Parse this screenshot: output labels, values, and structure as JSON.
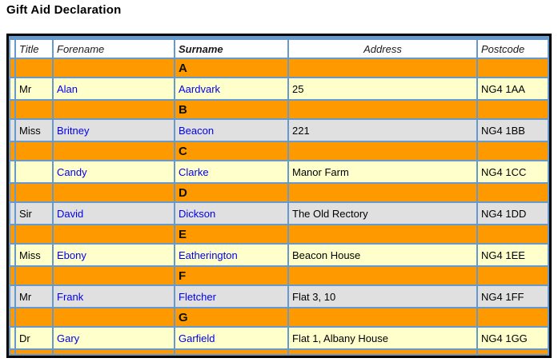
{
  "page_title": "Gift Aid Declaration",
  "table": {
    "columns": [
      {
        "key": "title",
        "label": "Title"
      },
      {
        "key": "forename",
        "label": "Forename"
      },
      {
        "key": "surname",
        "label": "Surname"
      },
      {
        "key": "address",
        "label": "Address"
      },
      {
        "key": "postcode",
        "label": "Postcode"
      }
    ],
    "rows": [
      {
        "type": "separator",
        "letter": "A"
      },
      {
        "type": "data",
        "shade": "yellow",
        "title": "Mr",
        "forename": "Alan",
        "surname": "Aardvark",
        "address": "25",
        "postcode": "NG4 1AA"
      },
      {
        "type": "separator",
        "letter": "B"
      },
      {
        "type": "data",
        "shade": "gray",
        "title": "Miss",
        "forename": "Britney",
        "surname": "Beacon",
        "address": "221",
        "postcode": "NG4 1BB"
      },
      {
        "type": "separator",
        "letter": "C"
      },
      {
        "type": "data",
        "shade": "yellow",
        "title": "",
        "forename": "Candy",
        "surname": "Clarke",
        "address": "Manor Farm",
        "postcode": "NG4 1CC"
      },
      {
        "type": "separator",
        "letter": "D"
      },
      {
        "type": "data",
        "shade": "gray",
        "title": "Sir",
        "forename": "David",
        "surname": "Dickson",
        "address": "The Old Rectory",
        "postcode": "NG4 1DD"
      },
      {
        "type": "separator",
        "letter": "E"
      },
      {
        "type": "data",
        "shade": "yellow",
        "title": "Miss",
        "forename": "Ebony",
        "surname": "Eatherington",
        "address": "Beacon House",
        "postcode": "NG4 1EE"
      },
      {
        "type": "separator",
        "letter": "F"
      },
      {
        "type": "data",
        "shade": "gray",
        "title": "Mr",
        "forename": "Frank",
        "surname": "Fletcher",
        "address": "Flat 3, 10",
        "postcode": "NG4 1FF"
      },
      {
        "type": "separator",
        "letter": "G"
      },
      {
        "type": "data",
        "shade": "yellow",
        "title": "Dr",
        "forename": "Gary",
        "surname": "Garfield",
        "address": "Flat 1, Albany House",
        "postcode": "NG4 1GG"
      },
      {
        "type": "partial"
      }
    ]
  },
  "colors": {
    "separator_orange": "#FF9900",
    "row_yellow": "#FFFFCC",
    "row_gray": "#E0E0E0",
    "grid_blue": "#6699CC",
    "link_blue": "#0000EE",
    "header_bg": "#FFFFFF",
    "outer_border": "#000000"
  }
}
